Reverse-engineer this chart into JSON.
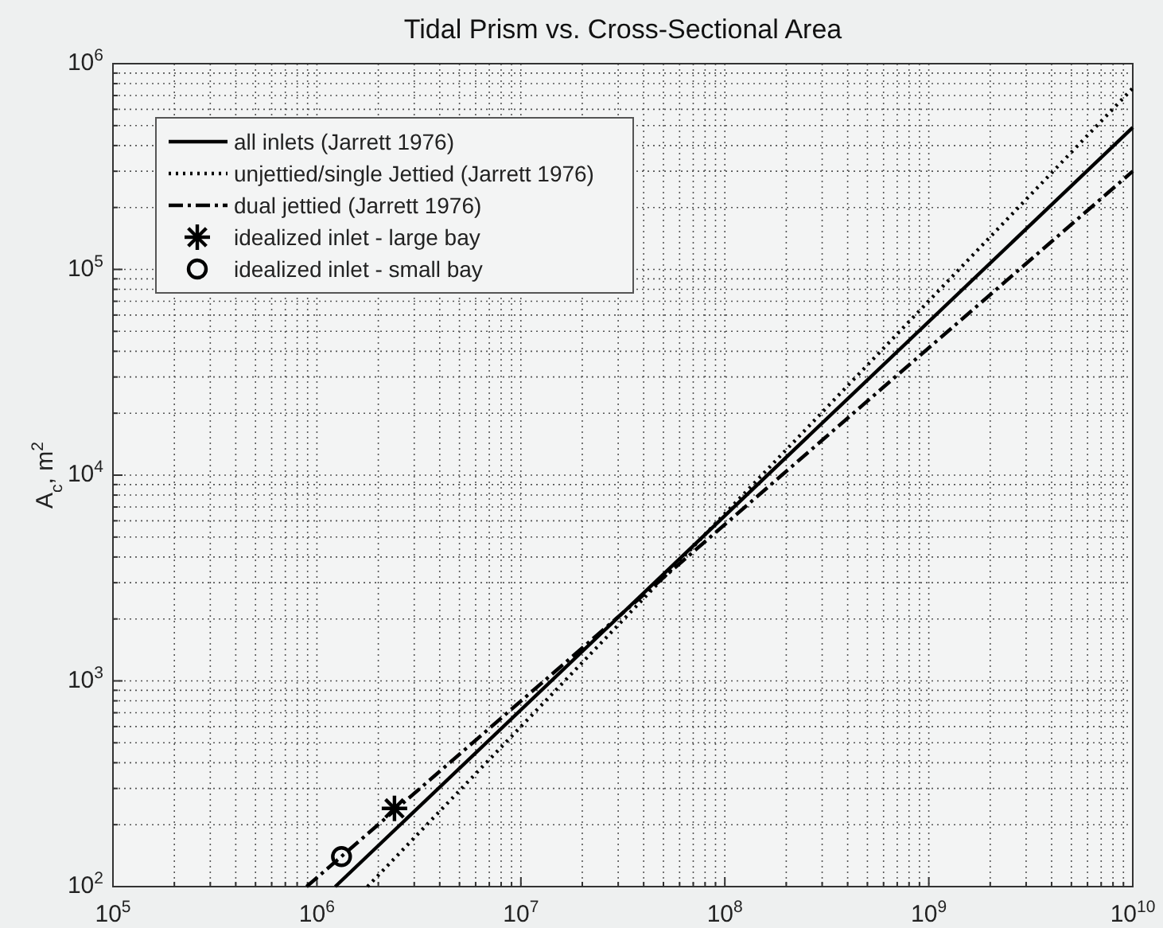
{
  "chart_data": {
    "type": "line",
    "title": "Tidal Prism vs. Cross-Sectional Area",
    "ylabel": "A$_{c}$, m$^{2}$",
    "log": "xy",
    "grid": true,
    "legend": "top left",
    "xlim": [
      100000,
      10000000000
    ],
    "ylim": [
      100,
      1000000
    ],
    "xticks": [
      {
        "value": 100000,
        "label": "10$^{5}$"
      },
      {
        "value": 1000000,
        "label": "10$^{6}$"
      },
      {
        "value": 10000000,
        "label": "10$^{7}$"
      },
      {
        "value": 100000000,
        "label": "10$^{8}$"
      },
      {
        "value": 1000000000,
        "label": "10$^{9}$"
      },
      {
        "value": 10000000000,
        "label": "10$^{10}$"
      }
    ],
    "yticks": [
      {
        "value": 100,
        "label": "10$^{2}$"
      },
      {
        "value": 1000,
        "label": "10$^{3}$"
      },
      {
        "value": 10000,
        "label": "10$^{4}$"
      },
      {
        "value": 100000,
        "label": "10$^{5}$"
      },
      {
        "value": 1000000,
        "label": "10$^{6}$"
      }
    ],
    "series": [
      {
        "name": "all inlets (Jarrett 1976)",
        "color": "#000000",
        "line_style": "solid",
        "x": [
          1230000,
          10000000000
        ],
        "values": [
          100,
          490000
        ]
      },
      {
        "name": "unjettied/single Jettied (Jarrett 1976)",
        "color": "#000000",
        "line_style": "dotted",
        "x": [
          1770000,
          10000000000
        ],
        "values": [
          100,
          760000
        ]
      },
      {
        "name": "dual jettied (Jarrett 1976)",
        "color": "#000000",
        "line_style": "dashdot",
        "x": [
          890000,
          10000000000
        ],
        "values": [
          100,
          300000
        ]
      },
      {
        "name": "idealized inlet - large bay",
        "type": "scatter",
        "color": "#000000",
        "marker": "cross",
        "x": [
          2400000
        ],
        "values": [
          240
        ]
      },
      {
        "name": "idealized inlet - small bay",
        "type": "scatter",
        "color": "#000000",
        "marker": "circle",
        "x": [
          1320000
        ],
        "values": [
          140
        ]
      }
    ]
  }
}
